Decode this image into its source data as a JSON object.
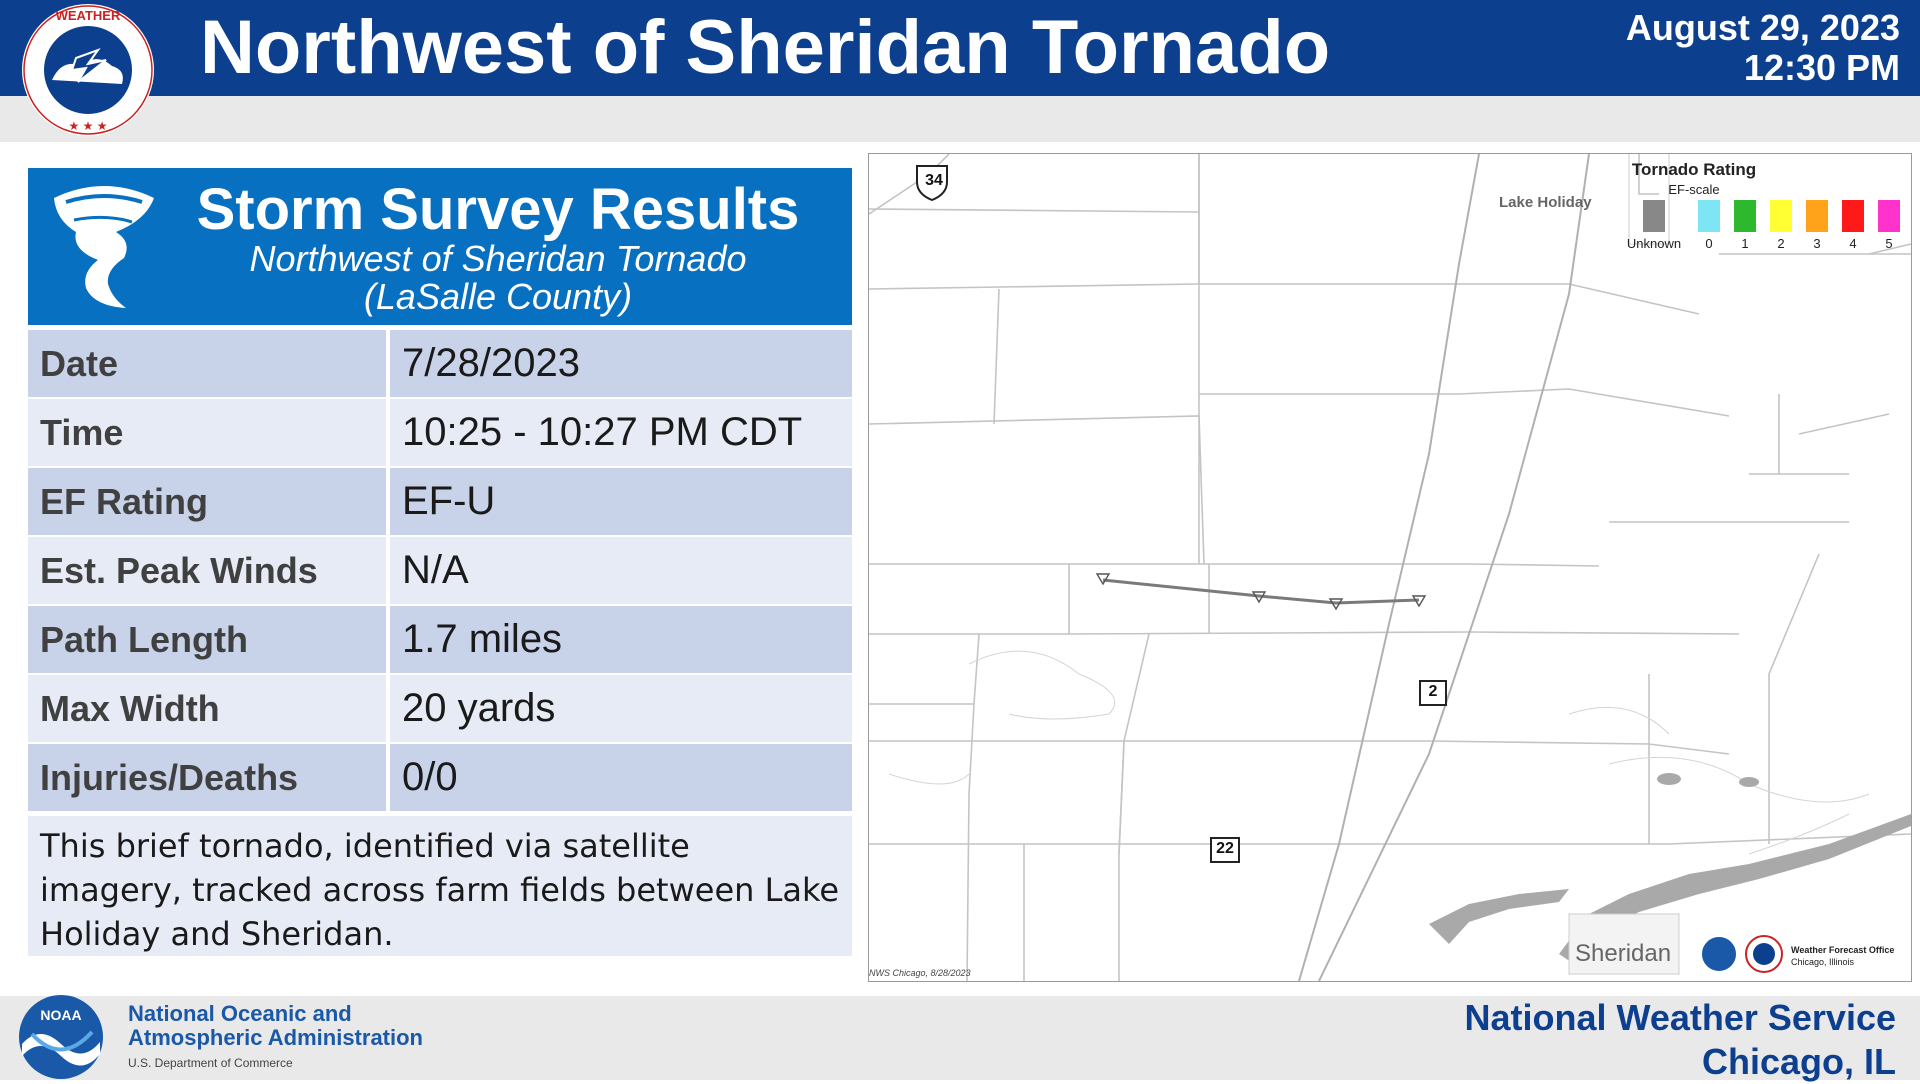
{
  "header": {
    "title": "Northwest of Sheridan Tornado",
    "date": "August 29, 2023",
    "time": "12:30 PM"
  },
  "survey": {
    "title": "Storm Survey Results",
    "subtitle": "Northwest of Sheridan Tornado",
    "county": "(LaSalle County)",
    "rows": [
      {
        "label": "Date",
        "value": "7/28/2023"
      },
      {
        "label": "Time",
        "value": "10:25 - 10:27 PM CDT"
      },
      {
        "label": "EF Rating",
        "value": "EF-U"
      },
      {
        "label": "Est. Peak Winds",
        "value": "N/A"
      },
      {
        "label": "Path Length",
        "value": "1.7 miles"
      },
      {
        "label": "Max Width",
        "value": "20 yards"
      },
      {
        "label": "Injuries/Deaths",
        "value": "0/0"
      }
    ],
    "description": "This brief tornado, identified via satellite imagery, tracked across farm fields between Lake Holiday and Sheridan."
  },
  "map": {
    "places": {
      "lake_holiday": "Lake Holiday",
      "sheridan": "Sheridan"
    },
    "routes": {
      "us34": "34",
      "r2": "2",
      "r22": "22"
    },
    "credit": "NWS Chicago, 8/28/2023",
    "wfo": "Weather Forecast Office",
    "wfo_loc": "Chicago, Illinois",
    "legend": {
      "title": "Tornado Rating",
      "subtitle": "EF-scale",
      "items": [
        {
          "label": "Unknown",
          "color": "#888888"
        },
        {
          "label": "0",
          "color": "#7fe5f5"
        },
        {
          "label": "1",
          "color": "#2eb82e"
        },
        {
          "label": "2",
          "color": "#ffff33"
        },
        {
          "label": "3",
          "color": "#ffa31a"
        },
        {
          "label": "4",
          "color": "#ff1a1a"
        },
        {
          "label": "5",
          "color": "#ff33cc"
        }
      ]
    }
  },
  "footer": {
    "noaa_line1": "National Oceanic and",
    "noaa_line2": "Atmospheric Administration",
    "noaa_dept": "U.S. Department of Commerce",
    "nws_line1": "National Weather Service",
    "nws_line2": "Chicago, IL"
  },
  "logos": {
    "nws_ring_top": "NATIONAL WEATHER SERVICE",
    "noaa_mark": "NOAA"
  }
}
